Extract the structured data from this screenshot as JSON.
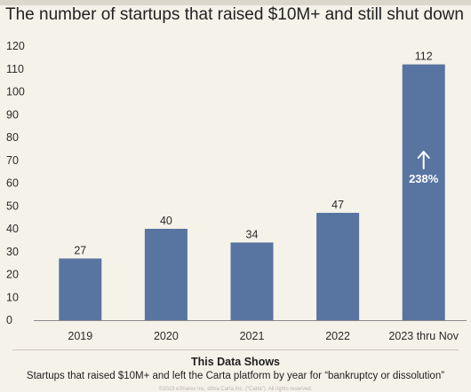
{
  "title": "The number of startups that raised $10M+ and still shut down",
  "footer": {
    "heading": "This Data Shows",
    "description": "Startups that raised $10M+ and left the Carta platform by year for “bankruptcy or dissolution”",
    "fine_print": "©2023 eShares Inc. d/b/a Carta Inc. (“Carta”). All rights reserved."
  },
  "colors": {
    "bar": "#5874a0",
    "axis_text": "#2a2a2a",
    "arrow_text": "#ffffff",
    "background": "#f5f2ea"
  },
  "chart_data": {
    "type": "bar",
    "categories": [
      "2019",
      "2020",
      "2021",
      "2022",
      "2023 thru Nov"
    ],
    "values": [
      27,
      40,
      34,
      47,
      112
    ],
    "data_labels": [
      "27",
      "40",
      "34",
      "47",
      "112"
    ],
    "ylim": [
      0,
      120
    ],
    "yticks": [
      0,
      10,
      20,
      30,
      40,
      50,
      60,
      70,
      80,
      90,
      100,
      110,
      120
    ],
    "grid": false,
    "annotation": {
      "category": "2023 thru Nov",
      "icon": "up-arrow-icon",
      "text": "238%"
    }
  }
}
